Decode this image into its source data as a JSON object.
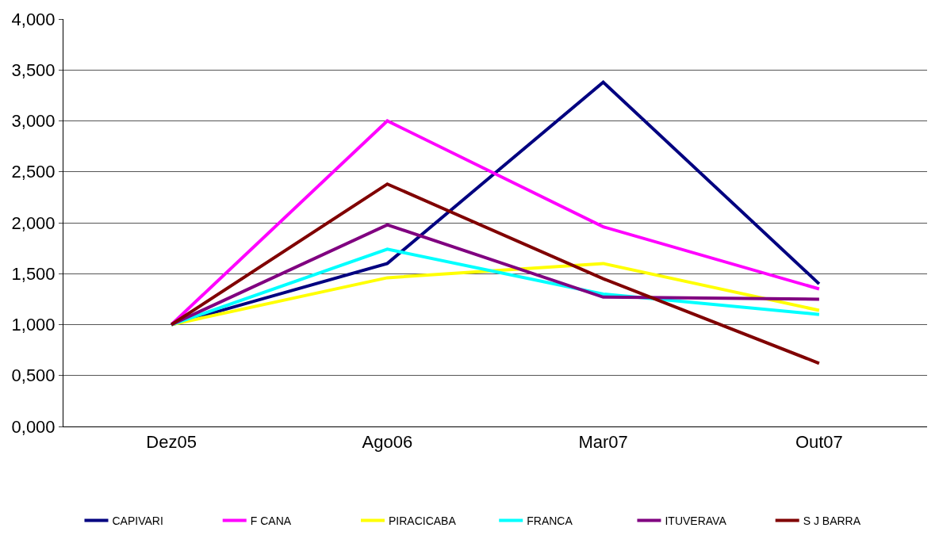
{
  "chart_data": {
    "type": "line",
    "categories": [
      "Dez05",
      "Ago06",
      "Mar07",
      "Out07"
    ],
    "series": [
      {
        "name": "CAPIVARI",
        "color": "#000080",
        "values": [
          1.0,
          1.6,
          3.38,
          1.4
        ]
      },
      {
        "name": "F CANA",
        "color": "#ff00ff",
        "values": [
          1.0,
          3.0,
          1.96,
          1.35
        ]
      },
      {
        "name": "PIRACICABA",
        "color": "#ffff00",
        "values": [
          1.0,
          1.46,
          1.6,
          1.14
        ]
      },
      {
        "name": "FRANCA",
        "color": "#00ffff",
        "values": [
          1.0,
          1.74,
          1.3,
          1.1
        ]
      },
      {
        "name": "ITUVERAVA",
        "color": "#800080",
        "values": [
          1.0,
          1.98,
          1.27,
          1.25
        ]
      },
      {
        "name": "S J BARRA",
        "color": "#800000",
        "values": [
          1.0,
          2.38,
          1.45,
          0.62
        ]
      }
    ],
    "ylim": [
      0,
      4
    ],
    "yticks": [
      {
        "value": 0,
        "label": "0,000"
      },
      {
        "value": 0.5,
        "label": "0,500"
      },
      {
        "value": 1,
        "label": "1,000"
      },
      {
        "value": 1.5,
        "label": "1,500"
      },
      {
        "value": 2,
        "label": "2,000"
      },
      {
        "value": 2.5,
        "label": "2,500"
      },
      {
        "value": 3,
        "label": "3,000"
      },
      {
        "value": 3.5,
        "label": "3,500"
      },
      {
        "value": 4,
        "label": "4,000"
      }
    ],
    "grid": "y",
    "legend": "bottom",
    "marker": "none",
    "line_style": "solid"
  }
}
